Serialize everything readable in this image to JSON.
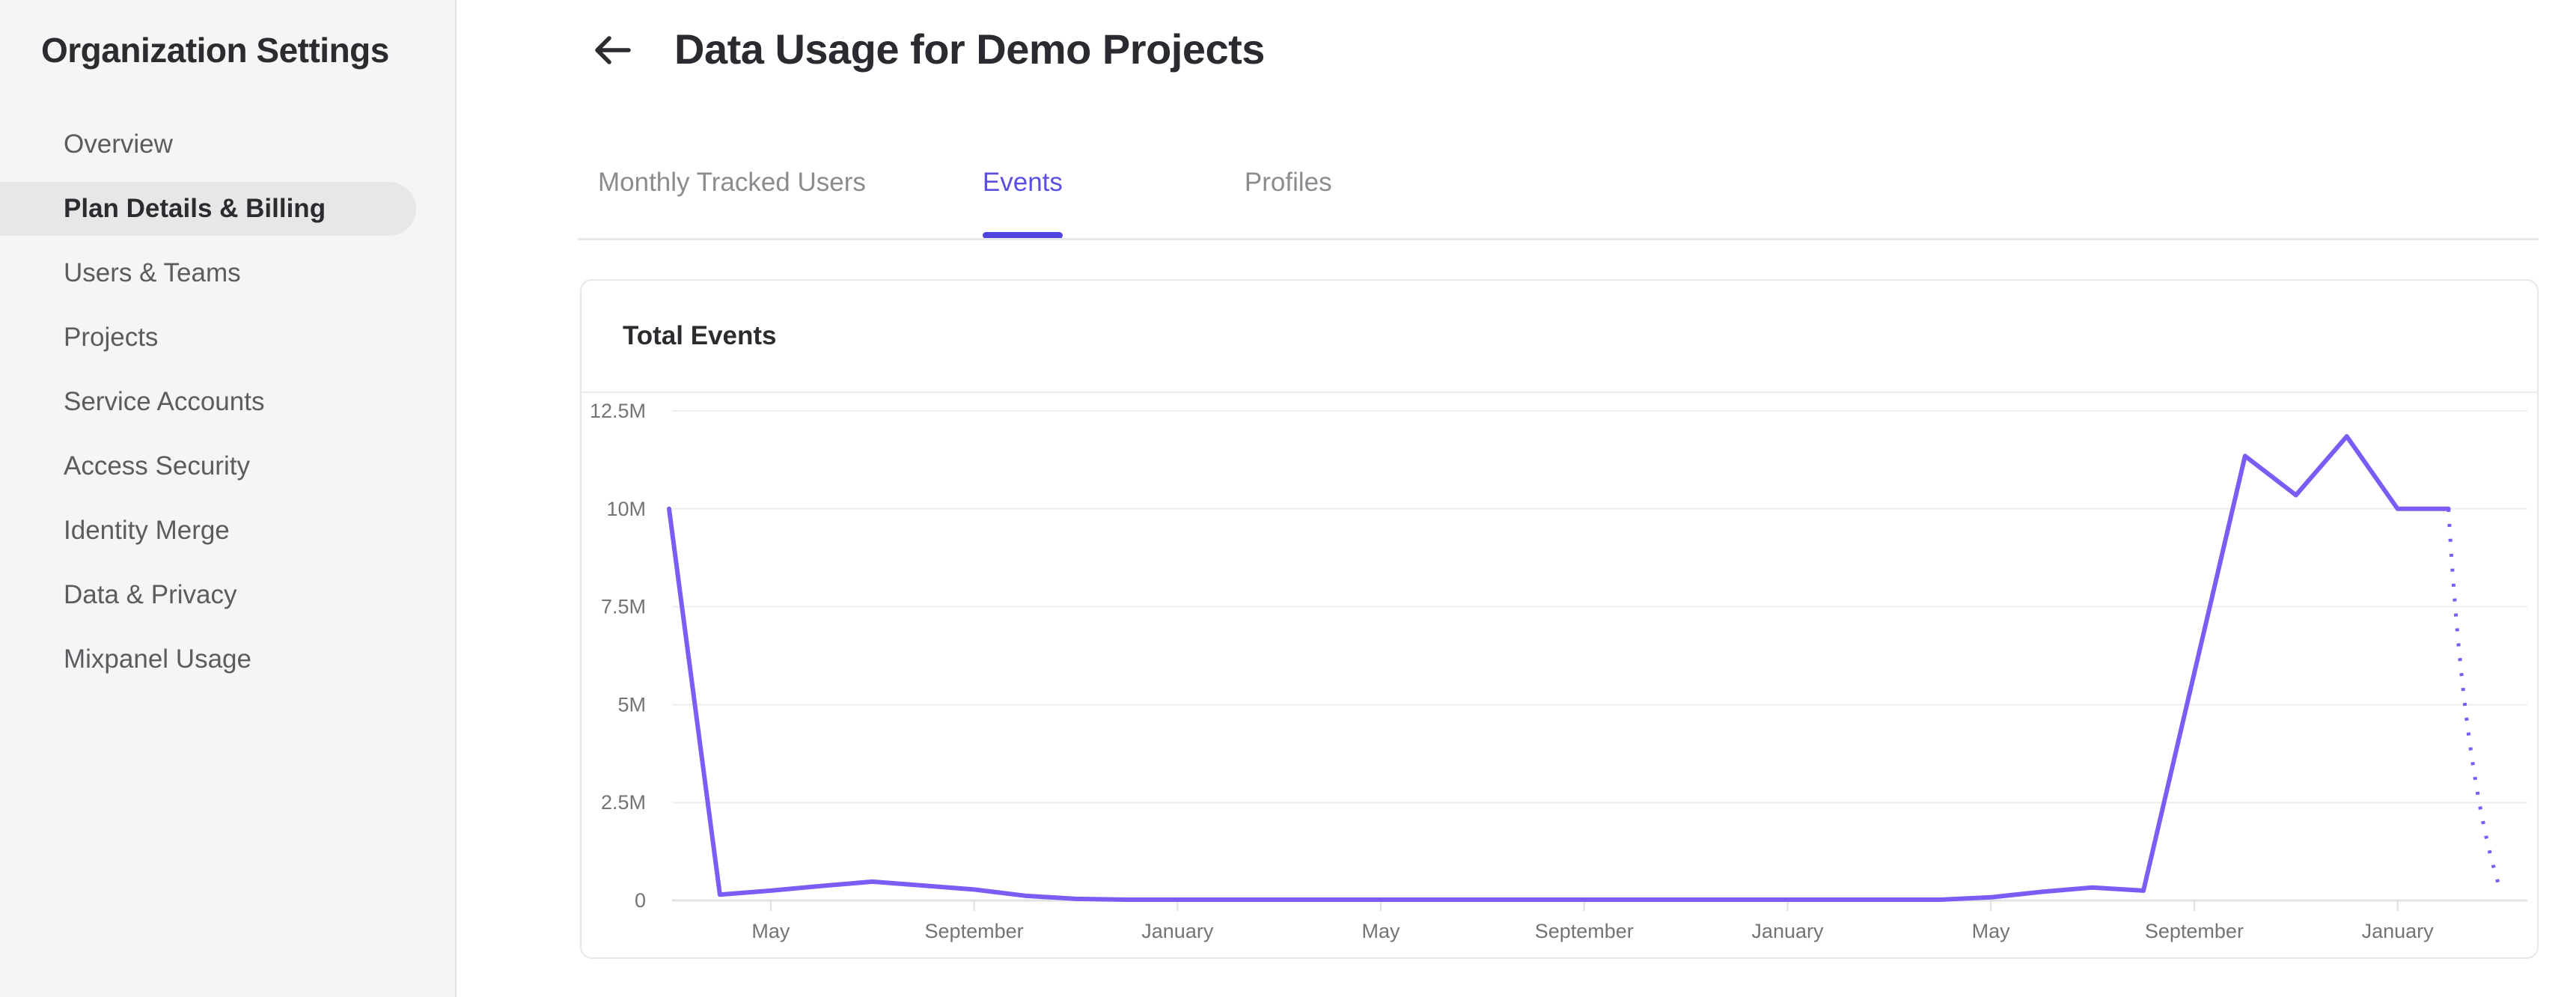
{
  "sidebar": {
    "title": "Organization Settings",
    "items": [
      {
        "label": "Overview",
        "selected": false
      },
      {
        "label": "Plan Details & Billing",
        "selected": true
      },
      {
        "label": "Users & Teams",
        "selected": false
      },
      {
        "label": "Projects",
        "selected": false
      },
      {
        "label": "Service Accounts",
        "selected": false
      },
      {
        "label": "Access Security",
        "selected": false
      },
      {
        "label": "Identity Merge",
        "selected": false
      },
      {
        "label": "Data & Privacy",
        "selected": false
      },
      {
        "label": "Mixpanel Usage",
        "selected": false
      }
    ]
  },
  "header": {
    "title": "Data Usage for Demo Projects",
    "back_icon": "arrow-left"
  },
  "tabs": {
    "items": [
      {
        "label": "Monthly Tracked Users",
        "active": false
      },
      {
        "label": "Events",
        "active": true
      },
      {
        "label": "Profiles",
        "active": false
      }
    ]
  },
  "card": {
    "title": "Total Events"
  },
  "theme": {
    "accent": "#4f44e0",
    "active_tab_text": "#5a4fe0",
    "line_color": "#7b5cf5",
    "grid_color": "#ededed",
    "axis_color": "#e2e2e2",
    "tick_color": "#e0e0e0",
    "axis_label_color": "#737378",
    "sidebar_bg": "#f5f5f5",
    "selected_pill_bg": "#e7e7e7"
  },
  "chart_data": {
    "type": "line",
    "title": "Total Events",
    "series_name": "Total Events",
    "xlabel": "",
    "ylabel": "",
    "ylim": [
      0,
      12.5
    ],
    "grid": "horizontal",
    "legend": "none",
    "y_ticks": [
      {
        "value": 12.5,
        "label": "12.5M"
      },
      {
        "value": 10,
        "label": "10M"
      },
      {
        "value": 7.5,
        "label": "7.5M"
      },
      {
        "value": 5,
        "label": "5M"
      },
      {
        "value": 2.5,
        "label": "2.5M"
      },
      {
        "value": 0,
        "label": "0"
      }
    ],
    "x_ticks": [
      {
        "index": 2,
        "label": "May"
      },
      {
        "index": 6,
        "label": "September"
      },
      {
        "index": 10,
        "label": "January"
      },
      {
        "index": 14,
        "label": "May"
      },
      {
        "index": 18,
        "label": "September"
      },
      {
        "index": 22,
        "label": "January"
      },
      {
        "index": 26,
        "label": "May"
      },
      {
        "index": 30,
        "label": "September"
      },
      {
        "index": 34,
        "label": "January"
      }
    ],
    "values_millions": [
      10.0,
      0.15,
      0.25,
      0.37,
      0.48,
      0.38,
      0.28,
      0.12,
      0.04,
      0.02,
      0.02,
      0.02,
      0.02,
      0.02,
      0.02,
      0.02,
      0.02,
      0.02,
      0.02,
      0.02,
      0.02,
      0.02,
      0.02,
      0.02,
      0.02,
      0.02,
      0.08,
      0.22,
      0.33,
      0.25,
      5.8,
      11.35,
      10.35,
      11.85,
      10.0,
      10.0,
      0.35
    ],
    "dotted_tail_segments": 1
  }
}
